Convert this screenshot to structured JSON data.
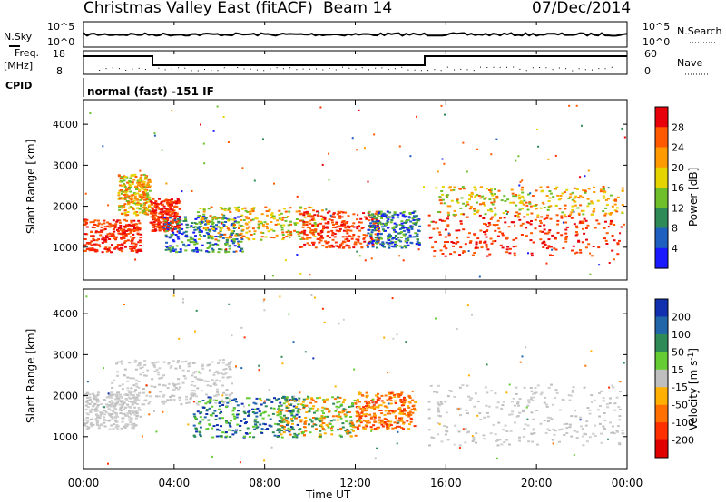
{
  "header": {
    "title": "Christmas Valley East (fitACF)",
    "beam": "Beam 14",
    "date": "07/Dec/2014"
  },
  "noise_panel": {
    "left_label": "N.Sky",
    "right_label": "N.Search",
    "left_ticks": [
      "10^5",
      "10^0"
    ],
    "right_ticks": [
      "10^5",
      "10^0"
    ]
  },
  "freq_panel": {
    "left_label": "Freq.",
    "left_unit": "[MHz]",
    "right_label": "Nave",
    "left_ticks": [
      "18",
      "8"
    ],
    "right_ticks": [
      "60",
      "0"
    ]
  },
  "cpid_panel": {
    "label": "CPID",
    "value": "normal (fast) -151 IF"
  },
  "colorbars": [
    {
      "label": "Power [dB]",
      "ticks": [
        "28",
        "24",
        "20",
        "16",
        "12",
        "8",
        "4"
      ],
      "colors": [
        "#e8000b",
        "#ff5a00",
        "#ff9a00",
        "#e6d400",
        "#6fbf2a",
        "#2e8b57",
        "#1f5fbf",
        "#1a1aff"
      ]
    },
    {
      "label": "Velocity [m s^-1]",
      "ticks": [
        "200",
        "100",
        "50",
        "15",
        "-15",
        "-50",
        "-100",
        "-200"
      ],
      "colors": [
        "#1030b0",
        "#2266aa",
        "#2e8b57",
        "#66cc33",
        "#bfbfbf",
        "#ffb000",
        "#ff7000",
        "#ff3000",
        "#e00000"
      ]
    }
  ],
  "chart_data": [
    {
      "type": "heatmap",
      "title": "Power",
      "xlabel": "Time UT",
      "ylabel": "Slant Range [km]",
      "x_ticks": [
        "00:00",
        "04:00",
        "08:00",
        "12:00",
        "16:00",
        "20:00",
        "00:00"
      ],
      "y_ticks": [
        1000,
        2000,
        3000,
        4000
      ],
      "xlim": [
        0,
        24
      ],
      "ylim": [
        200,
        4600
      ],
      "regions": [
        {
          "t0": 0.0,
          "t1": 2.5,
          "r0": 900,
          "r1": 1700,
          "level": "high"
        },
        {
          "t0": 1.5,
          "t1": 2.9,
          "r0": 1800,
          "r1": 2800,
          "level": "mid"
        },
        {
          "t0": 2.9,
          "t1": 4.2,
          "r0": 1400,
          "r1": 2200,
          "level": "high"
        },
        {
          "t0": 3.5,
          "t1": 7.0,
          "r0": 900,
          "r1": 1800,
          "level": "low"
        },
        {
          "t0": 5.0,
          "t1": 10.5,
          "r0": 1200,
          "r1": 2000,
          "level": "mid"
        },
        {
          "t0": 9.5,
          "t1": 13.0,
          "r0": 1000,
          "r1": 1900,
          "level": "high"
        },
        {
          "t0": 12.5,
          "t1": 14.8,
          "r0": 1000,
          "r1": 1900,
          "level": "low"
        },
        {
          "t0": 15.2,
          "t1": 23.8,
          "r0": 800,
          "r1": 1800,
          "level": "high"
        },
        {
          "t0": 15.5,
          "t1": 23.8,
          "r0": 1800,
          "r1": 2500,
          "level": "mid"
        }
      ]
    },
    {
      "type": "heatmap",
      "title": "Velocity",
      "xlabel": "Time UT",
      "ylabel": "Slant Range [km]",
      "x_ticks": [
        "00:00",
        "04:00",
        "08:00",
        "12:00",
        "16:00",
        "20:00",
        "00:00"
      ],
      "y_ticks": [
        1000,
        2000,
        3000,
        4000
      ],
      "xlim": [
        0,
        24
      ],
      "ylim": [
        200,
        4600
      ],
      "regions": [
        {
          "t0": 0.0,
          "t1": 2.5,
          "r0": 1200,
          "r1": 2100,
          "level": "ground"
        },
        {
          "t0": 1.2,
          "t1": 6.5,
          "r0": 1800,
          "r1": 2900,
          "level": "ground"
        },
        {
          "t0": 4.8,
          "t1": 9.5,
          "r0": 1000,
          "r1": 2000,
          "level": "toward"
        },
        {
          "t0": 8.5,
          "t1": 12.0,
          "r0": 1000,
          "r1": 2000,
          "level": "mixed"
        },
        {
          "t0": 12.0,
          "t1": 14.6,
          "r0": 1200,
          "r1": 2100,
          "level": "away"
        },
        {
          "t0": 15.2,
          "t1": 23.8,
          "r0": 800,
          "r1": 2300,
          "level": "ground"
        }
      ]
    }
  ]
}
